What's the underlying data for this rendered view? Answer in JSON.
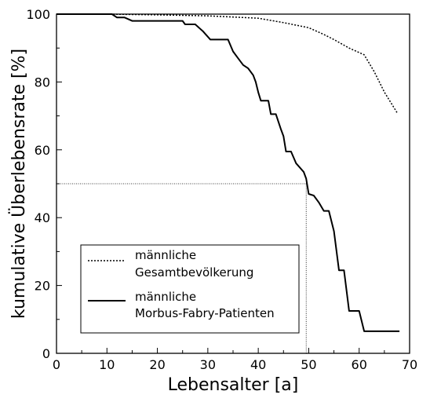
{
  "chart_data": {
    "type": "line",
    "xlabel": "Lebensalter [a]",
    "ylabel": "kumulative Überlebensrate [%]",
    "xlim": [
      0,
      70
    ],
    "ylim": [
      0,
      100
    ],
    "x_ticks": [
      0,
      10,
      20,
      30,
      40,
      50,
      60,
      70
    ],
    "y_ticks": [
      0,
      20,
      40,
      60,
      80,
      100
    ],
    "grid": false,
    "legend_position": "bottom-left",
    "series": [
      {
        "name_lines": [
          "männliche",
          "Gesamtbevölkerung"
        ],
        "style": "dotted",
        "points": [
          [
            0,
            100
          ],
          [
            10,
            100
          ],
          [
            20,
            99.8
          ],
          [
            30,
            99.5
          ],
          [
            40,
            98.8
          ],
          [
            45,
            97.5
          ],
          [
            50,
            96
          ],
          [
            53,
            94
          ],
          [
            55,
            92.5
          ],
          [
            58,
            90
          ],
          [
            61,
            88
          ],
          [
            63,
            83
          ],
          [
            65,
            77
          ],
          [
            67.5,
            71
          ]
        ]
      },
      {
        "name_lines": [
          "männliche",
          "Morbus-Fabry-Patienten"
        ],
        "style": "solid",
        "points": [
          [
            0,
            100
          ],
          [
            11,
            100
          ],
          [
            12,
            99
          ],
          [
            13.5,
            99
          ],
          [
            15,
            98
          ],
          [
            25,
            98
          ],
          [
            25.5,
            97
          ],
          [
            27.5,
            97
          ],
          [
            29,
            95
          ],
          [
            30.5,
            92.5
          ],
          [
            34,
            92.5
          ],
          [
            35,
            89
          ],
          [
            36,
            87
          ],
          [
            37,
            85
          ],
          [
            38,
            84
          ],
          [
            39,
            82
          ],
          [
            39.5,
            80
          ],
          [
            40,
            77
          ],
          [
            40.5,
            74.5
          ],
          [
            42,
            74.5
          ],
          [
            42.5,
            70.5
          ],
          [
            43.5,
            70.5
          ],
          [
            44.5,
            66
          ],
          [
            45,
            64
          ],
          [
            45.5,
            59.5
          ],
          [
            46.5,
            59.5
          ],
          [
            47.5,
            56
          ],
          [
            49,
            53.5
          ],
          [
            49.5,
            51.5
          ],
          [
            50,
            47
          ],
          [
            51,
            46.5
          ],
          [
            52,
            44.5
          ],
          [
            53,
            42
          ],
          [
            54,
            42
          ],
          [
            55,
            36
          ],
          [
            56,
            24.5
          ],
          [
            57,
            24.5
          ],
          [
            58,
            12.5
          ],
          [
            60,
            12.5
          ],
          [
            61,
            6.5
          ],
          [
            68,
            6.5
          ]
        ]
      }
    ],
    "median_reference": {
      "x": 49.5,
      "y": 50
    }
  }
}
